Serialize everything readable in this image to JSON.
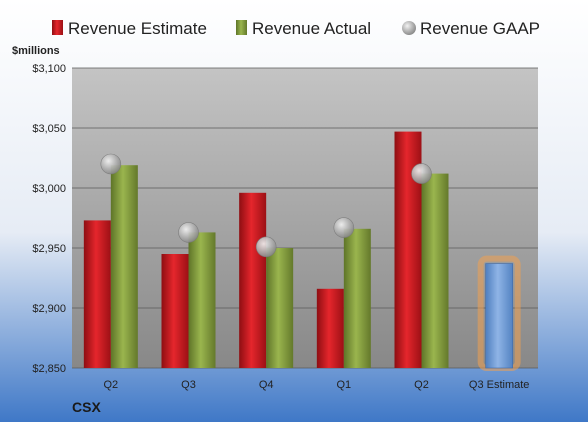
{
  "chart_data": {
    "type": "bar",
    "title": "",
    "ylabel": "$millions",
    "xlabel": "",
    "ylim": [
      2850,
      3100
    ],
    "yticks": [
      2850,
      2900,
      2950,
      3000,
      3050,
      3100
    ],
    "ytick_labels": [
      "$2,850",
      "$2,900",
      "$2,950",
      "$3,000",
      "$3,050",
      "$3,100"
    ],
    "grid": true,
    "legend_position": "top",
    "categories": [
      "Q2",
      "Q3",
      "Q4",
      "Q1",
      "Q2",
      "Q3 Estimate"
    ],
    "series": [
      {
        "name": "Revenue Estimate",
        "color": "#c8141b",
        "values": [
          2973,
          2945,
          2996,
          2916,
          3047,
          null
        ]
      },
      {
        "name": "Revenue Actual",
        "color": "#7f9a3a",
        "values": [
          3019,
          2963,
          2950,
          2966,
          3012,
          null
        ]
      },
      {
        "name": "Revenue GAAP",
        "color": "#aaaaaa",
        "marker": "circle",
        "values": [
          3020,
          2963,
          2951,
          2967,
          3012,
          null
        ]
      }
    ],
    "estimate": {
      "category": "Q3 Estimate",
      "value": 2937,
      "color": "#6a96cf",
      "glow_color": "#f0a050"
    }
  },
  "brand": {
    "ticker": "CSX"
  },
  "colors": {
    "background_top": "#ffffff",
    "background_bottom": "#3f78c7",
    "plot_top": "#bcbcbc",
    "plot_bottom": "#8a8a8a"
  }
}
